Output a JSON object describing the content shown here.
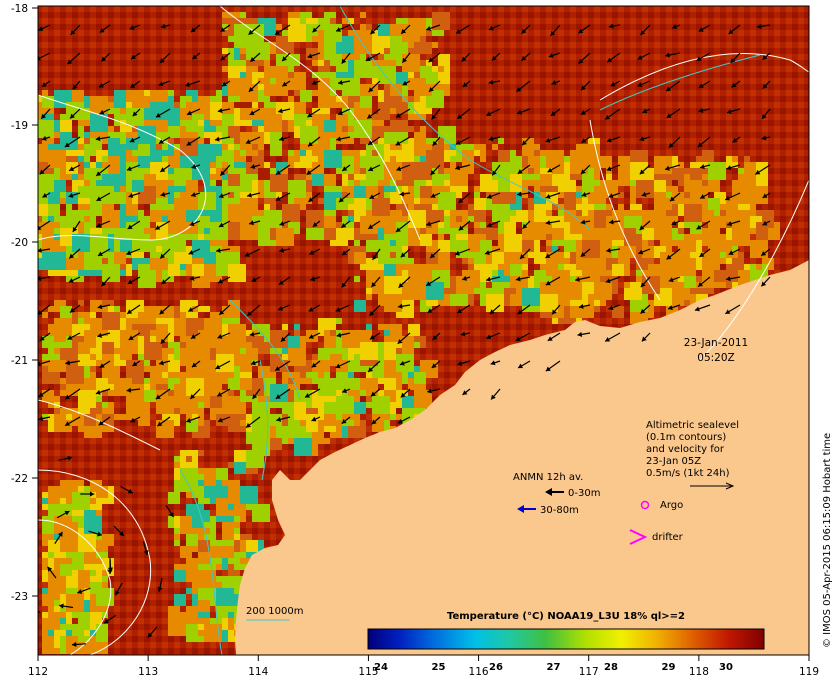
{
  "map": {
    "x_ticks": [
      "112",
      "113",
      "114",
      "115",
      "116",
      "117",
      "118",
      "119"
    ],
    "y_ticks": [
      "-18",
      "-19",
      "-20",
      "-21",
      "-22",
      "-23"
    ],
    "date": "23-Jan-2011",
    "time": "05:20Z",
    "altimetry_lines": [
      "Altimetric sealevel",
      "(0.1m contours)",
      "and velocity for",
      "23-Jan 05Z",
      "0.5m/s (1kt 24h)"
    ],
    "anmn_title": "ANMN 12h av.",
    "anmn_shallow": "0-30m",
    "anmn_deep": "30-80m",
    "argo_label": "Argo",
    "drifter_label": "drifter",
    "isobath_label": "200  1000m",
    "colorbar_title": "Temperature (°C) NOAA19_L3U 18% ql>=2",
    "colorbar_ticks": [
      "24",
      "25",
      "26",
      "27",
      "28",
      "29",
      "30"
    ],
    "side_credit": "© IMOS 05-Apr-2015 06:15:09 Hobart time",
    "colors": {
      "land": "#fac88c",
      "sst_hot": "#a81c00",
      "sst_warm": "#e68a00",
      "sst_mid": "#9fd000",
      "sst_cool": "#22b896",
      "argo": "#ff00ff",
      "deep_arrow": "#0000cc"
    }
  }
}
